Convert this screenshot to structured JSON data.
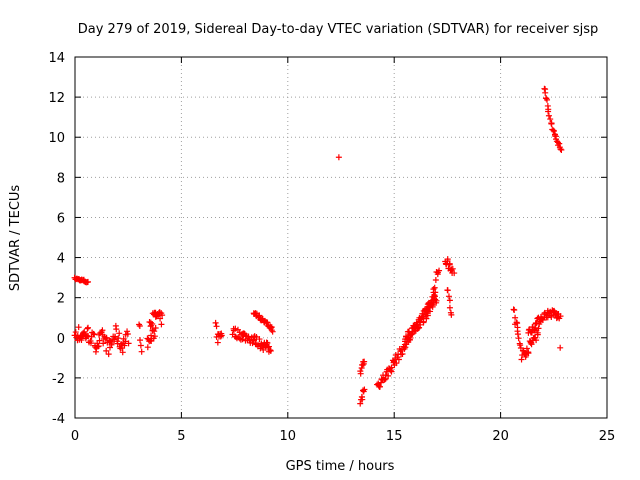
{
  "chart_data": {
    "type": "scatter",
    "title": "Day 279 of 2019, Sidereal Day-to-day VTEC variation (SDTVAR) for receiver sjsp",
    "xlabel": "GPS time / hours",
    "ylabel": "SDTVAR / TECUs",
    "xlim": [
      0,
      25
    ],
    "ylim": [
      -4,
      14
    ],
    "xticks": [
      0,
      5,
      10,
      15,
      20,
      25
    ],
    "yticks": [
      -4,
      -2,
      0,
      2,
      4,
      6,
      8,
      10,
      12,
      14
    ],
    "grid": true,
    "marker": "+",
    "color": "#ff0000",
    "series": [
      {
        "name": "SDTVAR",
        "segments": [
          {
            "x": [
              0.0,
              0.2,
              0.4,
              0.6
            ],
            "y": [
              2.95,
              2.9,
              2.85,
              2.75
            ],
            "spread": 0.05
          },
          {
            "x": [
              0.0,
              0.3,
              0.6,
              1.0,
              1.3,
              1.6,
              1.9,
              2.2,
              2.5
            ],
            "y": [
              0.3,
              0.1,
              0.2,
              -0.3,
              0.0,
              -0.5,
              0.2,
              -0.4,
              0.1
            ],
            "spread": 0.4
          },
          {
            "x": [
              3.0,
              3.15
            ],
            "y": [
              0.6,
              -0.4
            ],
            "spread": 0.3
          },
          {
            "x": [
              3.4,
              3.6,
              3.8
            ],
            "y": [
              -0.3,
              0.0,
              0.4
            ],
            "spread": 0.3
          },
          {
            "x": [
              3.5,
              3.8,
              4.1
            ],
            "y": [
              0.8,
              1.1,
              0.9
            ],
            "spread": 0.3
          },
          {
            "x": [
              6.6,
              6.7,
              6.9
            ],
            "y": [
              0.6,
              0.0,
              0.3
            ],
            "spread": 0.3
          },
          {
            "x": [
              7.4,
              7.9,
              8.4,
              8.9,
              9.2
            ],
            "y": [
              0.3,
              0.1,
              -0.1,
              -0.4,
              -0.6
            ],
            "spread": 0.25
          },
          {
            "x": [
              8.4,
              8.7,
              9.0,
              9.3
            ],
            "y": [
              1.3,
              1.0,
              0.7,
              0.4
            ],
            "spread": 0.1
          },
          {
            "x": [
              12.4
            ],
            "y": [
              9.0
            ],
            "spread": 0.0
          },
          {
            "x": [
              13.4,
              13.5,
              13.6
            ],
            "y": [
              -3.5,
              -3.0,
              -2.4
            ],
            "spread": 0.35
          },
          {
            "x": [
              13.4,
              13.5,
              13.6
            ],
            "y": [
              -1.8,
              -1.4,
              -1.0
            ],
            "spread": 0.25
          },
          {
            "x": [
              14.2,
              14.6,
              15.0,
              15.5,
              16.0,
              16.5,
              17.0
            ],
            "y": [
              -2.4,
              -1.9,
              -1.2,
              -0.4,
              0.4,
              1.2,
              2.0
            ],
            "spread": 0.25
          },
          {
            "x": [
              15.5,
              16.0,
              16.5,
              16.9
            ],
            "y": [
              0.0,
              0.6,
              1.3,
              1.9
            ],
            "spread": 0.2
          },
          {
            "x": [
              16.6,
              16.9,
              17.1
            ],
            "y": [
              1.5,
              2.4,
              3.5
            ],
            "spread": 0.35
          },
          {
            "x": [
              17.4,
              17.6,
              17.8
            ],
            "y": [
              3.9,
              3.6,
              3.4
            ],
            "spread": 0.25
          },
          {
            "x": [
              17.5,
              17.7
            ],
            "y": [
              2.3,
              1.2
            ],
            "spread": 0.3
          },
          {
            "x": [
              20.6,
              20.8,
              21.0
            ],
            "y": [
              1.3,
              0.3,
              -0.7
            ],
            "spread": 0.4
          },
          {
            "x": [
              21.0,
              21.4,
              21.8
            ],
            "y": [
              -0.9,
              -0.4,
              0.5
            ],
            "spread": 0.3
          },
          {
            "x": [
              21.3,
              21.6,
              21.9,
              22.2,
              22.5,
              22.8
            ],
            "y": [
              0.2,
              0.6,
              1.0,
              1.2,
              1.2,
              1.0
            ],
            "spread": 0.2
          },
          {
            "x": [
              22.8
            ],
            "y": [
              -0.5
            ],
            "spread": 0.0
          },
          {
            "x": [
              22.05,
              22.15,
              22.25,
              22.4,
              22.55,
              22.7,
              22.85
            ],
            "y": [
              12.5,
              12.0,
              11.3,
              10.6,
              10.1,
              9.7,
              9.3
            ],
            "spread": 0.1
          }
        ]
      }
    ]
  }
}
